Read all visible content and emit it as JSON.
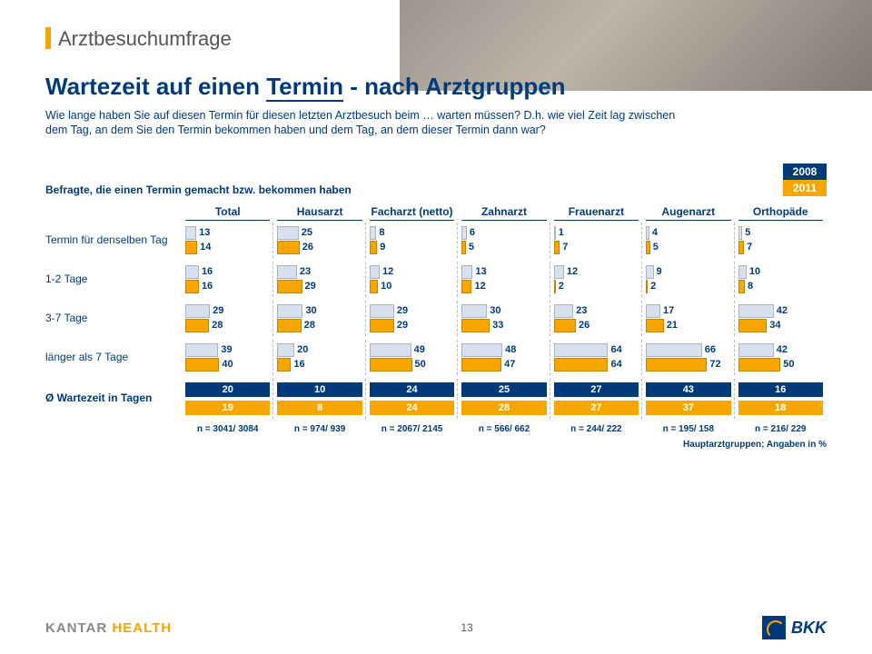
{
  "header": "Arztbesuchumfrage",
  "title_a": "Wartezeit auf einen ",
  "title_b": "Termin",
  "title_c": " - nach Arztgruppen",
  "question": "Wie lange haben Sie auf diesen Termin für diesen letzten Arztbesuch beim … warten müssen? D.h. wie viel Zeit lag zwischen dem Tag, an dem Sie den Termin bekommen haben und dem Tag, an dem dieser Termin dann war?",
  "legend_text": "Befragte, die einen Termin gemacht bzw. bekommen haben",
  "year08": "2008",
  "year11": "2011",
  "colors": {
    "y08_bar": "#d6e0ee",
    "y11_bar": "#f7a600",
    "y08_box": "#003a7a",
    "accent": "#f7a600",
    "text": "#003a7a"
  },
  "columns": [
    "Total",
    "Hausarzt",
    "Facharzt (netto)",
    "Zahnarzt",
    "Frauenarzt",
    "Augenarzt",
    "Orthopäde"
  ],
  "rows": [
    {
      "label": "Termin für denselben Tag",
      "v08": [
        13,
        25,
        8,
        6,
        1,
        4,
        5
      ],
      "v11": [
        14,
        26,
        9,
        5,
        7,
        5,
        7
      ]
    },
    {
      "label": "1-2 Tage",
      "v08": [
        16,
        23,
        12,
        13,
        12,
        9,
        10
      ],
      "v11": [
        16,
        29,
        10,
        12,
        2,
        2,
        8
      ]
    },
    {
      "label": "3-7 Tage",
      "v08": [
        29,
        30,
        29,
        30,
        23,
        17,
        42
      ],
      "v11": [
        28,
        28,
        29,
        33,
        26,
        21,
        34
      ]
    },
    {
      "label": "länger als 7 Tage",
      "v08": [
        39,
        20,
        49,
        48,
        64,
        66,
        42
      ],
      "v11": [
        40,
        16,
        50,
        47,
        64,
        72,
        50
      ]
    }
  ],
  "avg_label": "Ø Wartezeit in Tagen",
  "avg08": [
    20,
    10,
    24,
    25,
    27,
    43,
    16
  ],
  "avg11": [
    19,
    8,
    24,
    28,
    27,
    37,
    18
  ],
  "n": [
    "n = 3041/ 3084",
    "n = 974/ 939",
    "n = 2067/ 2145",
    "n = 566/ 662",
    "n = 244/ 222",
    "n = 195/ 158",
    "n = 216/ 229"
  ],
  "footnote": "Hauptarztgruppen; Angaben in %",
  "pagenum": "13",
  "bar_max": 100
}
